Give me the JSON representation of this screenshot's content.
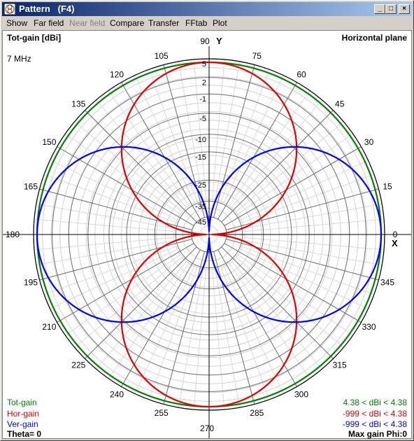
{
  "window": {
    "title": "Pattern   (F4)",
    "min_glyph": "_",
    "max_glyph": "□",
    "close_glyph": "×"
  },
  "menu": [
    {
      "label": "Show",
      "enabled": true
    },
    {
      "label": "Far field",
      "enabled": true
    },
    {
      "label": "Near field",
      "enabled": false
    },
    {
      "label": "Compare",
      "enabled": true
    },
    {
      "label": "Transfer",
      "enabled": true
    },
    {
      "label": "FFtab",
      "enabled": true
    },
    {
      "label": "Plot",
      "enabled": true
    }
  ],
  "plot_info": {
    "gain_label": "Tot-gain [dBi]",
    "plane": "Horizontal plane",
    "frequency": "7 MHz",
    "theta": "Theta= 0",
    "max_gain": "Max gain Phi:0",
    "axis_y": "Y",
    "axis_x": "X"
  },
  "legend": [
    {
      "name": "Tot-gain",
      "range": "4.38 < dBi < 4.38",
      "color": "#008000"
    },
    {
      "name": "Hor-gain",
      "range": "-999 < dBi < 4.38",
      "color": "#e00000"
    },
    {
      "name": "Ver-gain",
      "range": "-999 < dBi < 4.38",
      "color": "#0000ff"
    }
  ],
  "chart_data": {
    "type": "polar",
    "angle_labels": [
      "0",
      "15",
      "30",
      "45",
      "60",
      "75",
      "90",
      "105",
      "120",
      "135",
      "150",
      "165",
      "180",
      "195",
      "210",
      "225",
      "240",
      "255",
      "270",
      "285",
      "300",
      "315",
      "330",
      "345"
    ],
    "radial_labels": [
      "5",
      "2",
      "-1",
      "-5",
      "-10",
      "-15",
      "-25",
      "-35",
      "-45"
    ],
    "radial_scale": [
      {
        "label": "5",
        "r": 1.0
      },
      {
        "label": "2",
        "r": 0.894
      },
      {
        "label": "-1",
        "r": 0.8
      },
      {
        "label": "-5",
        "r": 0.69
      },
      {
        "label": "-10",
        "r": 0.57
      },
      {
        "label": "-15",
        "r": 0.47
      },
      {
        "label": "-25",
        "r": 0.31
      },
      {
        "label": "-35",
        "r": 0.19
      },
      {
        "label": "-45",
        "r": 0.1
      }
    ],
    "series": [
      {
        "name": "Tot-gain",
        "color": "#008000",
        "max_dbi": 4.38,
        "min_dbi": 4.38
      },
      {
        "name": "Hor-gain",
        "color": "#e00000",
        "max_dbi": 4.38,
        "min_dbi": -999
      },
      {
        "name": "Ver-gain",
        "color": "#0000ff",
        "max_dbi": 4.38,
        "min_dbi": -999
      }
    ]
  }
}
